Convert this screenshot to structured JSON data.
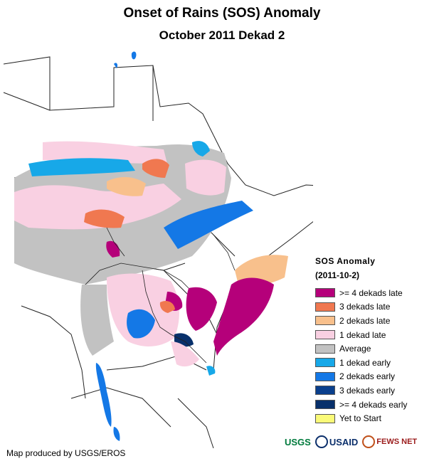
{
  "title": "Onset of Rains (SOS) Anomaly",
  "subtitle": "October 2011 Dekad 2",
  "legend": {
    "title": "SOS Anomaly",
    "subtitle": "(2011-10-2)",
    "items": [
      {
        "label": ">= 4 dekads late",
        "color": "#b5007a"
      },
      {
        "label": "3 dekads late",
        "color": "#f07850"
      },
      {
        "label": "2 dekads late",
        "color": "#f8c08c"
      },
      {
        "label": "1 dekad late",
        "color": "#f9d0e2"
      },
      {
        "label": "Average",
        "color": "#c2c2c2"
      },
      {
        "label": "1 dekad early",
        "color": "#17a8e8"
      },
      {
        "label": "2 dekads early",
        "color": "#1478e6"
      },
      {
        "label": "3 dekads early",
        "color": "#0a3f8c"
      },
      {
        "label": ">= 4 dekads early",
        "color": "#08306b"
      },
      {
        "label": "Yet to Start",
        "color": "#fafa78"
      }
    ]
  },
  "credit": "Map produced by USGS/EROS",
  "logos": {
    "usgs": "USGS",
    "usaid": "USAID",
    "fews": "FEWS NET"
  }
}
